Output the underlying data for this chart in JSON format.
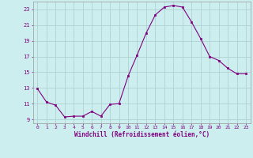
{
  "x": [
    0,
    1,
    2,
    3,
    4,
    5,
    6,
    7,
    8,
    9,
    10,
    11,
    12,
    13,
    14,
    15,
    16,
    17,
    18,
    19,
    20,
    21,
    22,
    23
  ],
  "y": [
    12.9,
    11.2,
    10.8,
    9.3,
    9.4,
    9.4,
    10.0,
    9.4,
    10.9,
    11.0,
    14.5,
    17.2,
    20.0,
    22.3,
    23.3,
    23.5,
    23.3,
    21.4,
    19.3,
    17.0,
    16.5,
    15.5,
    14.8,
    14.8
  ],
  "line_color": "#800080",
  "marker": "s",
  "marker_size": 2.0,
  "bg_color": "#cceeee",
  "grid_color": "#aacccc",
  "xlabel": "Windchill (Refroidissement éolien,°C)",
  "xlabel_color": "#800080",
  "ylim": [
    8.5,
    24.0
  ],
  "xlim": [
    -0.5,
    23.5
  ],
  "yticks": [
    9,
    11,
    13,
    15,
    17,
    19,
    21,
    23
  ],
  "xticks": [
    0,
    1,
    2,
    3,
    4,
    5,
    6,
    7,
    8,
    9,
    10,
    11,
    12,
    13,
    14,
    15,
    16,
    17,
    18,
    19,
    20,
    21,
    22,
    23
  ]
}
